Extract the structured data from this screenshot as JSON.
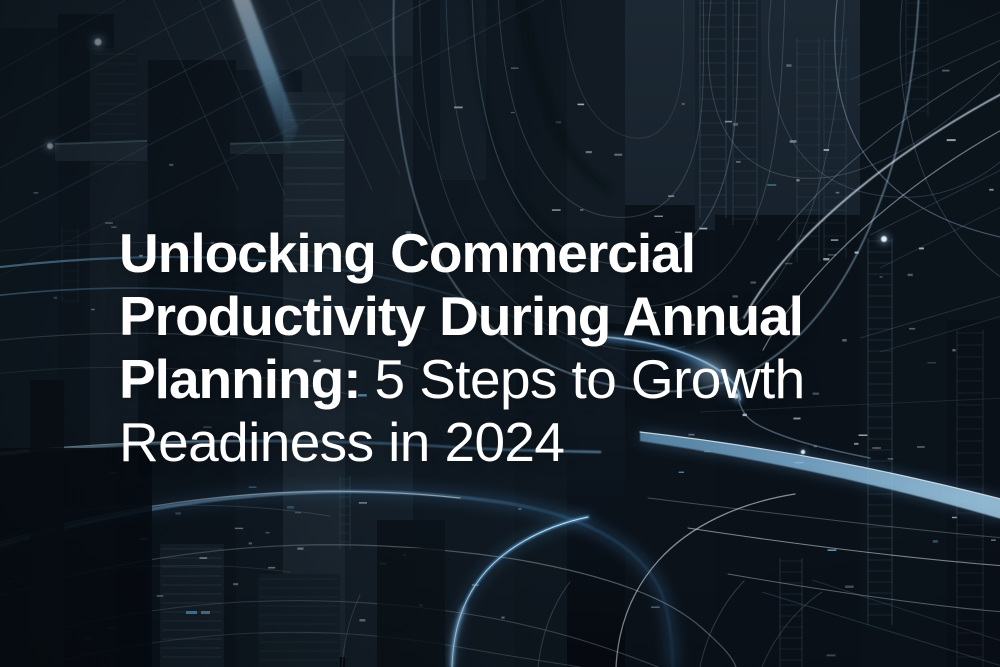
{
  "banner": {
    "headline": {
      "line1": "Unlocking Commercial",
      "line2": "Productivity During Annual",
      "line3_bold": "Planning:",
      "line3_light": "5 Steps to Growth",
      "line4": "Readiness in 2024",
      "full_text": "Unlocking Commercial Productivity During Annual Planning: 5 Steps to Growth Readiness in 2024"
    },
    "colors": {
      "text": "#ffffff",
      "background_top": "#1c2833",
      "background_bottom": "#060a10",
      "streak_cyan": "#6fb5e8",
      "streak_white": "#e8f3fb",
      "vortex_glow": "#4fa3e8"
    }
  }
}
